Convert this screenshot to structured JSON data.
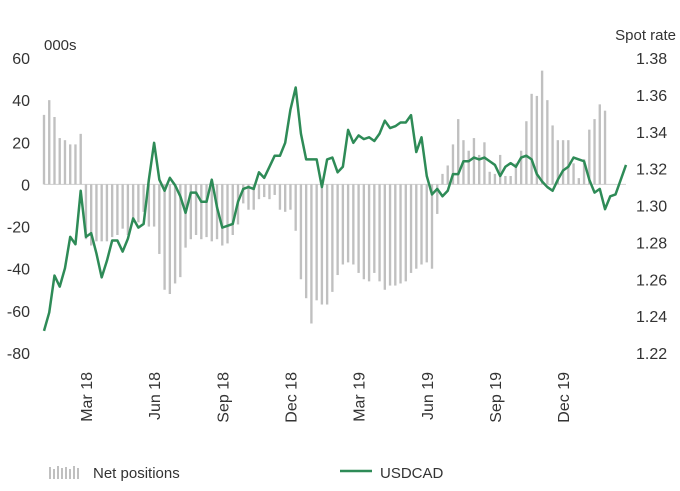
{
  "chart_data": {
    "type": "bar+line",
    "left_axis_unit": "000s",
    "right_axis_unit": "Spot rate",
    "left_ylim": [
      -80,
      60
    ],
    "left_ticks": [
      60,
      40,
      20,
      0,
      -20,
      -40,
      -60,
      -80
    ],
    "left_tick_labels": [
      "60",
      "40",
      "20",
      "0",
      "-20",
      "-40",
      "-60",
      "-80"
    ],
    "right_ylim": [
      1.22,
      1.38
    ],
    "right_ticks": [
      1.38,
      1.36,
      1.34,
      1.32,
      1.3,
      1.28,
      1.26,
      1.24,
      1.22
    ],
    "right_tick_labels": [
      "1.38",
      "1.36",
      "1.34",
      "1.32",
      "1.30",
      "1.28",
      "1.26",
      "1.24",
      "1.22"
    ],
    "x_tick_labels": [
      "Mar 18",
      "Jun 18",
      "Sep 18",
      "Dec 18",
      "Mar 19",
      "Jun 19",
      "Sep 19",
      "Dec 19"
    ],
    "x_tick_index": [
      8,
      21,
      34,
      47,
      60,
      73,
      86,
      99
    ],
    "bar_color": "#c0c0c0",
    "line_color": "#2e8b57",
    "series": [
      {
        "name": "Net positions",
        "axis": "left",
        "values": [
          33,
          40,
          32,
          22,
          21,
          19,
          19,
          24,
          -26,
          -29,
          -27,
          -27,
          -27,
          -25,
          -24,
          -21,
          -24,
          -18,
          -18,
          -13,
          -20,
          -20,
          -33,
          -50,
          -52,
          -47,
          -44,
          -30,
          -26,
          -24,
          -26,
          -25,
          -27,
          -26,
          -29,
          -28,
          -24,
          -19,
          -9,
          -12,
          -12,
          -7,
          -6,
          -7,
          -5,
          -12,
          -13,
          -12,
          -22,
          -45,
          -54,
          -66,
          -55,
          -57,
          -57,
          -51,
          -43,
          -38,
          -37,
          -38,
          -42,
          -45,
          -46,
          -42,
          -46,
          -50,
          -48,
          -48,
          -47,
          -46,
          -42,
          -40,
          -38,
          -37,
          -40,
          -14,
          5,
          9,
          19,
          31,
          21,
          16,
          22,
          14,
          20,
          6,
          5,
          14,
          4,
          4,
          10,
          16,
          30,
          43,
          42,
          54,
          40,
          28,
          21,
          21,
          21,
          10,
          3,
          12,
          26,
          31,
          38,
          35
        ]
      },
      {
        "name": "USDCAD",
        "axis": "right",
        "values": [
          1.232,
          1.242,
          1.262,
          1.256,
          1.266,
          1.283,
          1.279,
          1.308,
          1.283,
          1.285,
          1.274,
          1.261,
          1.27,
          1.281,
          1.281,
          1.275,
          1.282,
          1.293,
          1.288,
          1.29,
          1.314,
          1.334,
          1.314,
          1.308,
          1.315,
          1.311,
          1.305,
          1.296,
          1.307,
          1.307,
          1.302,
          1.302,
          1.314,
          1.299,
          1.288,
          1.289,
          1.29,
          1.302,
          1.309,
          1.31,
          1.309,
          1.318,
          1.315,
          1.321,
          1.327,
          1.327,
          1.334,
          1.352,
          1.364,
          1.339,
          1.325,
          1.325,
          1.325,
          1.31,
          1.325,
          1.326,
          1.318,
          1.321,
          1.341,
          1.334,
          1.338,
          1.336,
          1.337,
          1.335,
          1.339,
          1.346,
          1.342,
          1.343,
          1.345,
          1.345,
          1.349,
          1.329,
          1.337,
          1.316,
          1.306,
          1.309,
          1.305,
          1.308,
          1.317,
          1.317,
          1.324,
          1.324,
          1.326,
          1.325,
          1.326,
          1.324,
          1.322,
          1.316,
          1.321,
          1.323,
          1.321,
          1.326,
          1.327,
          1.325,
          1.317,
          1.313,
          1.31,
          1.308,
          1.314,
          1.319,
          1.321,
          1.326,
          1.325,
          1.324,
          1.314,
          1.307,
          1.309,
          1.298,
          1.305,
          1.306,
          1.314,
          1.322
        ]
      }
    ]
  }
}
